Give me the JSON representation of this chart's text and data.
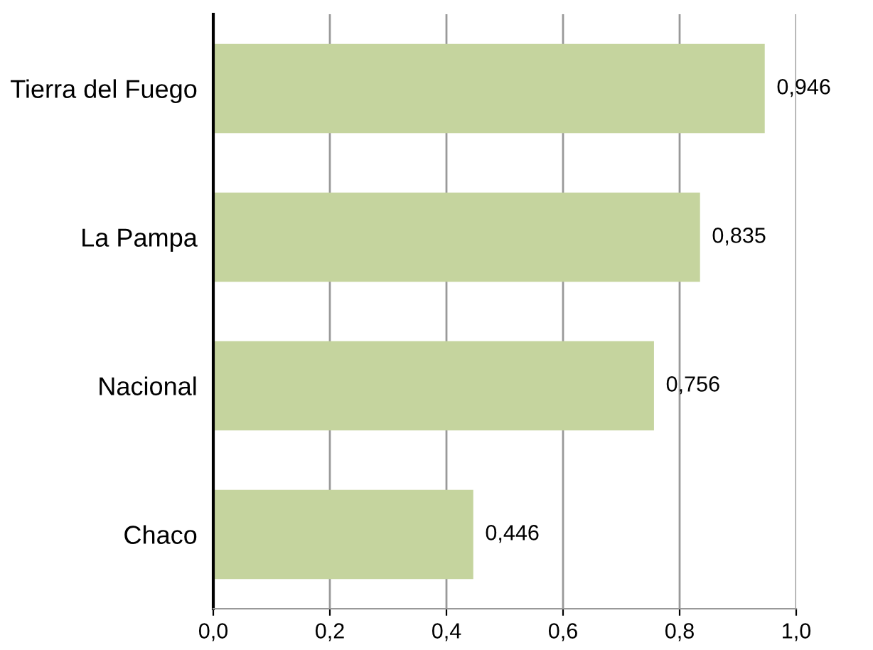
{
  "chart_data": {
    "type": "bar",
    "orientation": "horizontal",
    "categories": [
      "Tierra del Fuego",
      "La Pampa",
      "Nacional",
      "Chaco"
    ],
    "values": [
      0.946,
      0.835,
      0.756,
      0.446
    ],
    "value_labels": [
      "0,946",
      "0,835",
      "0,756",
      "0,446"
    ],
    "color": "#c5d49e",
    "xlim": [
      0,
      1.0
    ],
    "xticks": [
      {
        "value": 0,
        "label": "0,0"
      },
      {
        "value": 0.2,
        "label": "0,2"
      },
      {
        "value": 0.4,
        "label": "0,4"
      },
      {
        "value": 0.6,
        "label": "0,6"
      },
      {
        "value": 0.8,
        "label": "0,8"
      },
      {
        "value": 1.0,
        "label": "1,0"
      }
    ],
    "grid": "x"
  }
}
